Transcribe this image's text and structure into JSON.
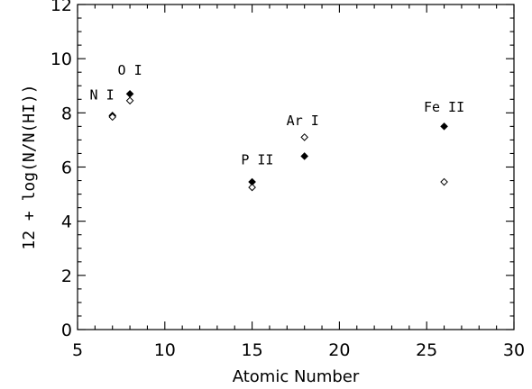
{
  "chart_data": {
    "type": "scatter",
    "title": "",
    "xlabel": "Atomic Number",
    "ylabel": "12 + log(N/N(HI))",
    "xlim": [
      5,
      30
    ],
    "ylim": [
      0,
      12
    ],
    "x_ticks": [
      5,
      10,
      15,
      20,
      25,
      30
    ],
    "y_ticks": [
      0,
      2,
      4,
      6,
      8,
      10,
      12
    ],
    "x_minor_step": 1,
    "y_minor_step": 0.5,
    "grid": false,
    "series": [
      {
        "marker": "filled-diamond",
        "color": "#000000",
        "points": [
          {
            "x": 7,
            "y": 7.9
          },
          {
            "x": 8,
            "y": 8.7
          },
          {
            "x": 15,
            "y": 5.45
          },
          {
            "x": 18,
            "y": 6.4
          },
          {
            "x": 26,
            "y": 7.5
          }
        ]
      },
      {
        "marker": "open-diamond",
        "color": "#000000",
        "points": [
          {
            "x": 7,
            "y": 7.85
          },
          {
            "x": 8,
            "y": 8.45
          },
          {
            "x": 15,
            "y": 5.25
          },
          {
            "x": 18,
            "y": 7.1
          },
          {
            "x": 26,
            "y": 5.45
          }
        ]
      }
    ],
    "annotations": [
      {
        "text": "N I",
        "x": 6.4,
        "y": 8.5
      },
      {
        "text": "O I",
        "x": 8.0,
        "y": 9.4
      },
      {
        "text": "P II",
        "x": 15.3,
        "y": 6.1
      },
      {
        "text": "Ar I",
        "x": 17.9,
        "y": 7.55
      },
      {
        "text": "Fe II",
        "x": 26.0,
        "y": 8.05
      }
    ]
  }
}
